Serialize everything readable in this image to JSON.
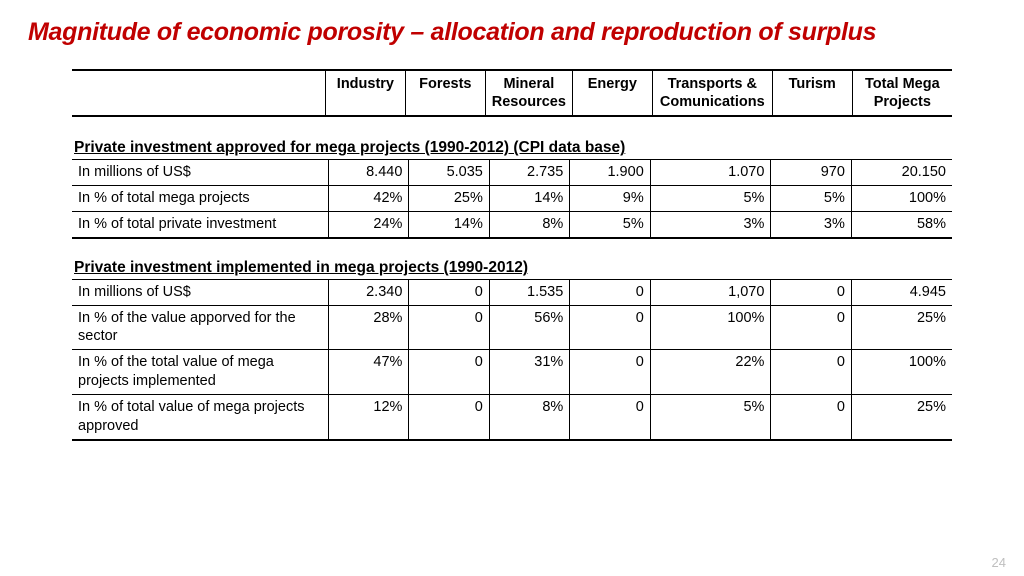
{
  "title": "Magnitude of economic porosity – allocation and reproduction of surplus",
  "page_number": "24",
  "colors": {
    "title": "#c00000",
    "text": "#000000",
    "page_num": "#bfbfbf",
    "bg": "#ffffff"
  },
  "columns": [
    "Industry",
    "Forests",
    "Mineral Resources",
    "Energy",
    "Transports & Comunications",
    "Turism",
    "Total Mega Projects"
  ],
  "sections": [
    {
      "title": "Private investment approved for mega projects (1990-2012) (CPI data base)",
      "rows": [
        {
          "label": "In millions of US$",
          "vals": [
            "8.440",
            "5.035",
            "2.735",
            "1.900",
            "1.070",
            "970",
            "20.150"
          ]
        },
        {
          "label": "In % of total mega projects",
          "vals": [
            "42%",
            "25%",
            "14%",
            "9%",
            "5%",
            "5%",
            "100%"
          ]
        },
        {
          "label": "In % of total private investment",
          "vals": [
            "24%",
            "14%",
            "8%",
            "5%",
            "3%",
            "3%",
            "58%"
          ]
        }
      ]
    },
    {
      "title": "Private investment implemented in mega projects (1990-2012)",
      "rows": [
        {
          "label": "In millions of US$",
          "vals": [
            "2.340",
            "0",
            "1.535",
            "0",
            "1,070",
            "0",
            "4.945"
          ]
        },
        {
          "label": "In % of the value apporved for the sector",
          "vals": [
            "28%",
            "0",
            "56%",
            "0",
            "100%",
            "0",
            "25%"
          ]
        },
        {
          "label": "In % of the total value of mega projects implemented",
          "vals": [
            "47%",
            "0",
            "31%",
            "0",
            "22%",
            "0",
            "100%"
          ]
        },
        {
          "label": "In % of total value of mega projects approved",
          "vals": [
            "12%",
            "0",
            "8%",
            "0",
            "5%",
            "0",
            "25%"
          ]
        }
      ]
    }
  ]
}
